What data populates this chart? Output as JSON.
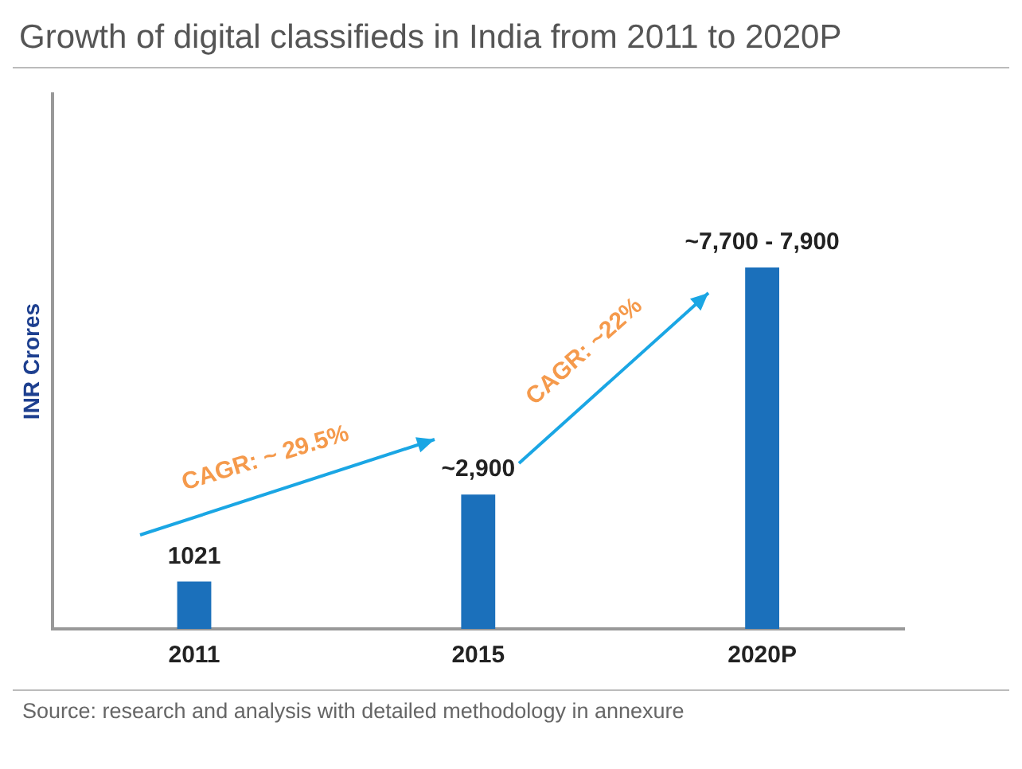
{
  "chart_data": {
    "type": "bar",
    "title": "Growth of digital classifieds in India from 2011 to 2020P",
    "ylabel": "INR Crores",
    "categories": [
      "2011",
      "2015",
      "2020P"
    ],
    "values": [
      1021,
      2900,
      7800
    ],
    "value_labels": [
      "1021",
      "~2,900",
      "~7,700 - 7,900"
    ],
    "color": "#1b70bb",
    "tick_labels": "x",
    "legend": false,
    "annotations": [
      "CAGR: ~ 29.5%",
      "CAGR: ~22%",
      "Source: research and analysis with detailed methodology in annexure"
    ]
  }
}
